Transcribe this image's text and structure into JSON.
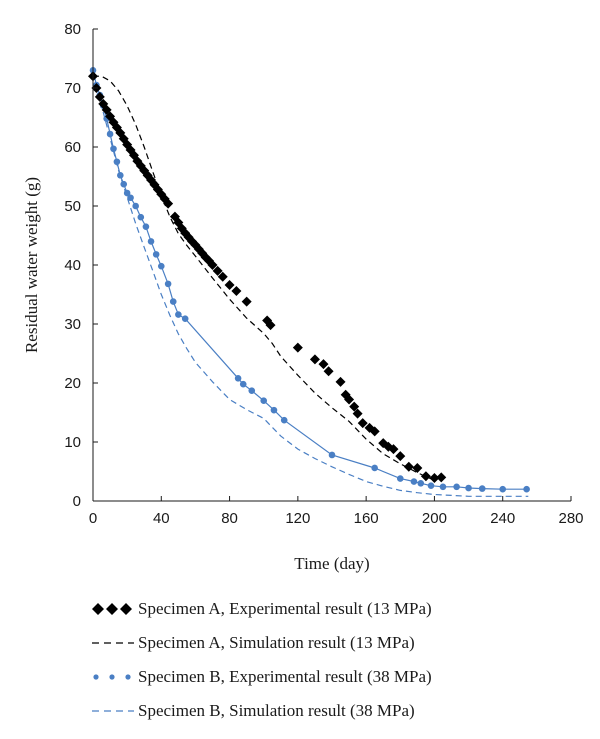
{
  "chart_data": {
    "type": "scatter",
    "title": "",
    "xlabel": "Time (day)",
    "ylabel": "Residual water weight (g)",
    "xlim": [
      0,
      280
    ],
    "ylim": [
      0,
      80
    ],
    "xticks": [
      0,
      40,
      80,
      120,
      160,
      200,
      240,
      280
    ],
    "yticks": [
      0,
      10,
      20,
      30,
      40,
      50,
      60,
      70,
      80
    ],
    "grid": false,
    "legend_position": "bottom",
    "series": [
      {
        "name": "Specimen A, Experimental result (13 MPa)",
        "style": "diamond-markers",
        "color": "#000000",
        "x": [
          0,
          2,
          4,
          6,
          8,
          10,
          12,
          14,
          16,
          18,
          20,
          22,
          24,
          26,
          28,
          30,
          32,
          34,
          36,
          38,
          40,
          42,
          44,
          48,
          50,
          52,
          54,
          56,
          58,
          60,
          62,
          64,
          66,
          68,
          70,
          73,
          76,
          80,
          84,
          90,
          102,
          104,
          120,
          130,
          135,
          138,
          145,
          148,
          150,
          153,
          155,
          158,
          162,
          165,
          170,
          173,
          176,
          180,
          185,
          190,
          195,
          200,
          204
        ],
        "y": [
          72,
          70,
          68.5,
          67.3,
          66.3,
          65.2,
          64.2,
          63.3,
          62.4,
          61.4,
          60.4,
          59.5,
          58.6,
          57.6,
          56.8,
          56.0,
          55.2,
          54.4,
          53.6,
          52.8,
          52.0,
          51.2,
          50.4,
          48.2,
          47.2,
          46.2,
          45.4,
          44.7,
          44.0,
          43.4,
          42.7,
          42.0,
          41.3,
          40.7,
          40.0,
          39.0,
          38.0,
          36.6,
          35.6,
          33.8,
          30.6,
          29.8,
          26.0,
          24.0,
          23.2,
          22.0,
          20.2,
          18.0,
          17.2,
          16.0,
          14.8,
          13.2,
          12.4,
          11.8,
          9.8,
          9.2,
          8.8,
          7.6,
          5.8,
          5.6,
          4.2,
          3.9,
          4.0
        ]
      },
      {
        "name": "Specimen A, Simulation result (13 MPa)",
        "style": "dashed-line",
        "color": "#000000",
        "x": [
          0,
          5,
          10,
          15,
          20,
          25,
          30,
          35,
          40,
          45,
          50,
          55,
          60,
          70,
          80,
          90,
          100,
          105,
          110,
          120,
          130,
          140,
          150,
          160,
          170,
          180,
          190,
          200
        ],
        "y": [
          72,
          72,
          71.2,
          69.5,
          67,
          63.8,
          60,
          55.8,
          51.8,
          48.2,
          45.3,
          43.3,
          41.5,
          37.8,
          34.2,
          31,
          28.4,
          26.7,
          24.5,
          21.3,
          18.3,
          15.8,
          13.5,
          10.5,
          8,
          6.3,
          4.8,
          3.5
        ]
      },
      {
        "name": "Specimen B, Experimental result (38 MPa)",
        "style": "circle-markers-with-line",
        "color": "#4a7fc4",
        "x": [
          0,
          2,
          4,
          6,
          8,
          10,
          12,
          14,
          16,
          18,
          20,
          22,
          25,
          28,
          31,
          34,
          37,
          40,
          44,
          47,
          50,
          54,
          85,
          88,
          93,
          100,
          106,
          112,
          140,
          165,
          180,
          188,
          192,
          198,
          205,
          213,
          220,
          228,
          240,
          254
        ],
        "y": [
          73,
          70.5,
          68.8,
          67,
          64.8,
          62.2,
          59.7,
          57.5,
          55.2,
          53.7,
          52.2,
          51.4,
          50.0,
          48.1,
          46.5,
          44.0,
          41.8,
          39.8,
          36.8,
          33.8,
          31.6,
          30.9,
          20.8,
          19.8,
          18.7,
          17.0,
          15.4,
          13.7,
          7.8,
          5.6,
          3.8,
          3.3,
          3.0,
          2.6,
          2.4,
          2.4,
          2.2,
          2.1,
          2.0,
          2.0
        ]
      },
      {
        "name": "Specimen B, Simulation result (38 MPa)",
        "style": "dashed-line",
        "color": "#4a7fc4",
        "x": [
          0,
          5,
          10,
          15,
          20,
          25,
          30,
          35,
          40,
          45,
          50,
          55,
          60,
          70,
          80,
          90,
          100,
          105,
          110,
          120,
          130,
          140,
          150,
          160,
          170,
          180,
          190,
          200,
          220,
          240,
          255
        ],
        "y": [
          72.5,
          67,
          61.5,
          56,
          51.5,
          47,
          43,
          39,
          35,
          31.5,
          28.3,
          25.8,
          23.5,
          20.2,
          17.2,
          15.5,
          14,
          12.5,
          11,
          8.8,
          7.2,
          5.8,
          4.5,
          3.3,
          2.5,
          1.8,
          1.4,
          1.1,
          0.8,
          0.8,
          0.8
        ]
      }
    ]
  }
}
